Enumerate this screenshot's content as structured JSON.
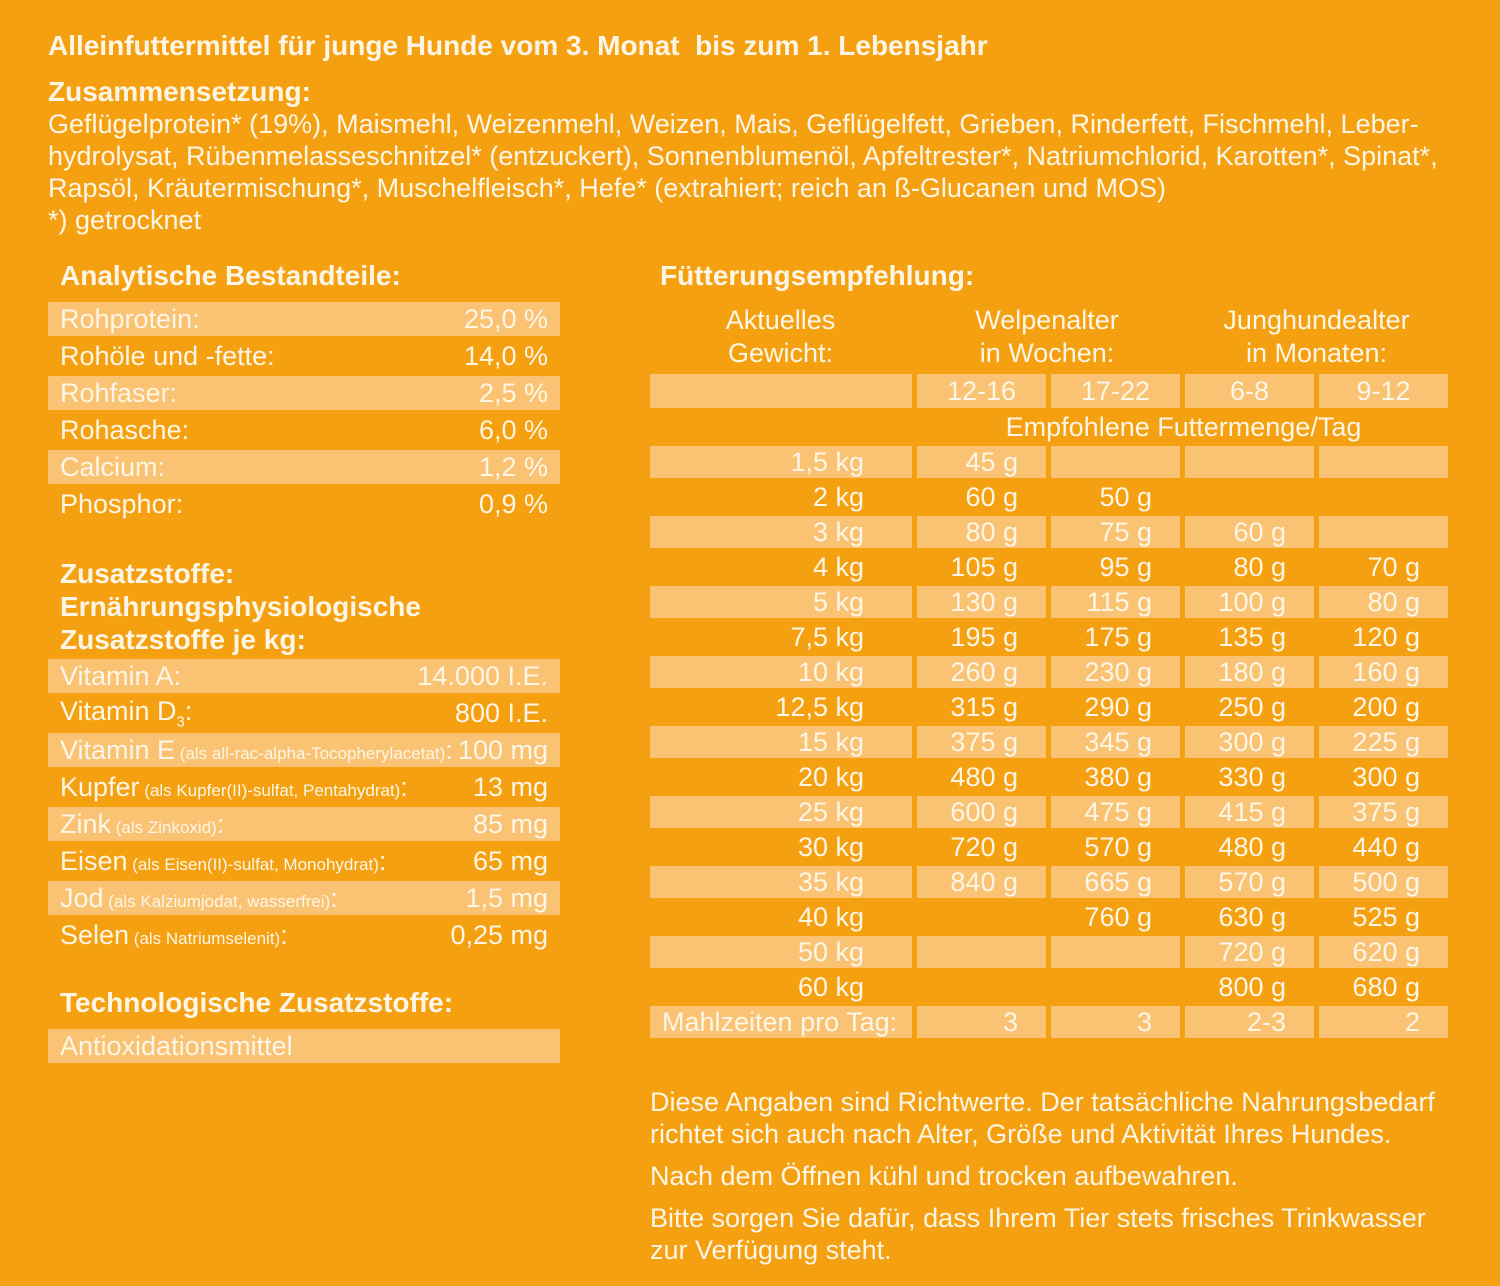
{
  "colors": {
    "background": "#F4A010",
    "row_highlight": "#F9C373",
    "text": "#FDF6E7"
  },
  "header": {
    "title": "Alleinfuttermittel für junge Hunde vom 3. Monat  bis zum 1. Lebensjahr",
    "composition_heading": "Zusammensetzung:",
    "composition_lines": [
      "Geflügelprotein* (19%), Maismehl, Weizenmehl, Weizen, Mais, Geflügelfett, Grieben, Rinderfett, Fischmehl, Leber-",
      "hydrolysat, Rübenmelasseschnitzel* (entzuckert), Sonnenblumenöl, Apfeltrester*, Natriumchlorid, Karotten*, Spinat*,",
      "Rapsöl, Kräutermischung*, Muschelfleisch*, Hefe* (extrahiert; reich an ß-Glucanen und MOS)"
    ],
    "footnote": "*) getrocknet"
  },
  "analytical": {
    "heading": "Analytische Bestandteile:",
    "rows": [
      {
        "label": "Rohprotein:",
        "value": "25,0 %"
      },
      {
        "label": "Rohöle und -fette:",
        "value": "14,0 %"
      },
      {
        "label": "Rohfaser:",
        "value": "2,5 %"
      },
      {
        "label": "Rohasche:",
        "value": "6,0 %"
      },
      {
        "label": "Calcium:",
        "value": "1,2 %"
      },
      {
        "label": "Phosphor:",
        "value": "0,9 %"
      }
    ]
  },
  "additives": {
    "heading_lines": [
      "Zusatzstoffe:",
      "Ernährungsphysiologische",
      "Zusatzstoffe je kg:"
    ],
    "rows": [
      {
        "name": "Vitamin A",
        "sub": "",
        "detail": "",
        "suffix": ":",
        "value": "14.000 I.E."
      },
      {
        "name": "Vitamin D",
        "sub": "3",
        "detail": "",
        "suffix": ":",
        "value": "800 I.E."
      },
      {
        "name": "Vitamin E",
        "sub": "",
        "detail": " (als all-rac-alpha-Tocopherylacetat)",
        "suffix": ":",
        "value": "100 mg"
      },
      {
        "name": "Kupfer",
        "sub": "",
        "detail": " (als Kupfer(II)-sulfat, Pentahydrat)",
        "suffix": ":",
        "value": "13 mg"
      },
      {
        "name": "Zink",
        "sub": "",
        "detail": " (als Zinkoxid)",
        "suffix": ":",
        "value": "85 mg"
      },
      {
        "name": "Eisen",
        "sub": "",
        "detail": " (als Eisen(II)-sulfat, Monohydrat)",
        "suffix": ":",
        "value": "65 mg"
      },
      {
        "name": "Jod",
        "sub": "",
        "detail": " (als Kalziumjodat, wasserfrei)",
        "suffix": ":",
        "value": "1,5 mg"
      },
      {
        "name": "Selen",
        "sub": "",
        "detail": " (als Natriumselenit)",
        "suffix": ":",
        "value": "0,25 mg"
      }
    ]
  },
  "technological": {
    "heading": "Technologische Zusatzstoffe:",
    "rows": [
      {
        "label": "Antioxidationsmittel",
        "value": ""
      }
    ]
  },
  "feeding": {
    "heading": "Fütterungsempfehlung:",
    "col_groups": [
      {
        "line1": "Aktuelles",
        "line2": "Gewicht:"
      },
      {
        "line1": "Welpenalter",
        "line2": "in Wochen:"
      },
      {
        "line1": "Junghundealter",
        "line2": "in Monaten:"
      }
    ],
    "age_header": [
      "12-16",
      "17-22",
      "6-8",
      "9-12"
    ],
    "subheader": "Empfohlene Futtermenge/Tag",
    "rows": [
      {
        "weight": "1,5 kg",
        "values": [
          "45 g",
          "",
          "",
          ""
        ]
      },
      {
        "weight": "2 kg",
        "values": [
          "60 g",
          "50 g",
          "",
          ""
        ]
      },
      {
        "weight": "3 kg",
        "values": [
          "80 g",
          "75 g",
          "60 g",
          ""
        ]
      },
      {
        "weight": "4 kg",
        "values": [
          "105 g",
          "95 g",
          "80 g",
          "70 g"
        ]
      },
      {
        "weight": "5 kg",
        "values": [
          "130 g",
          "115 g",
          "100 g",
          "80 g"
        ]
      },
      {
        "weight": "7,5 kg",
        "values": [
          "195 g",
          "175 g",
          "135 g",
          "120 g"
        ]
      },
      {
        "weight": "10 kg",
        "values": [
          "260 g",
          "230 g",
          "180 g",
          "160 g"
        ]
      },
      {
        "weight": "12,5 kg",
        "values": [
          "315 g",
          "290 g",
          "250 g",
          "200 g"
        ]
      },
      {
        "weight": "15 kg",
        "values": [
          "375 g",
          "345 g",
          "300 g",
          "225 g"
        ]
      },
      {
        "weight": "20 kg",
        "values": [
          "480 g",
          "380 g",
          "330 g",
          "300 g"
        ]
      },
      {
        "weight": "25 kg",
        "values": [
          "600 g",
          "475 g",
          "415 g",
          "375 g"
        ]
      },
      {
        "weight": "30 kg",
        "values": [
          "720 g",
          "570 g",
          "480 g",
          "440 g"
        ]
      },
      {
        "weight": "35 kg",
        "values": [
          "840 g",
          "665 g",
          "570 g",
          "500 g"
        ]
      },
      {
        "weight": "40 kg",
        "values": [
          "",
          "760 g",
          "630 g",
          "525 g"
        ]
      },
      {
        "weight": "50 kg",
        "values": [
          "",
          "",
          "720 g",
          "620 g"
        ]
      },
      {
        "weight": "60 kg",
        "values": [
          "",
          "",
          "800 g",
          "680 g"
        ]
      }
    ],
    "meals_row": {
      "label": "Mahlzeiten pro Tag:",
      "values": [
        "3",
        "3",
        "2-3",
        "2"
      ]
    }
  },
  "notes": {
    "paragraphs": [
      [
        "Diese Angaben sind Richtwerte. Der tatsächliche Nahrungsbedarf",
        "richtet sich auch nach Alter, Größe und Aktivität Ihres Hundes."
      ],
      [
        "Nach dem Öffnen kühl und trocken aufbewahren."
      ],
      [
        "Bitte sorgen Sie dafür, dass Ihrem Tier stets frisches Trinkwasser",
        "zur Verfügung steht."
      ]
    ]
  }
}
